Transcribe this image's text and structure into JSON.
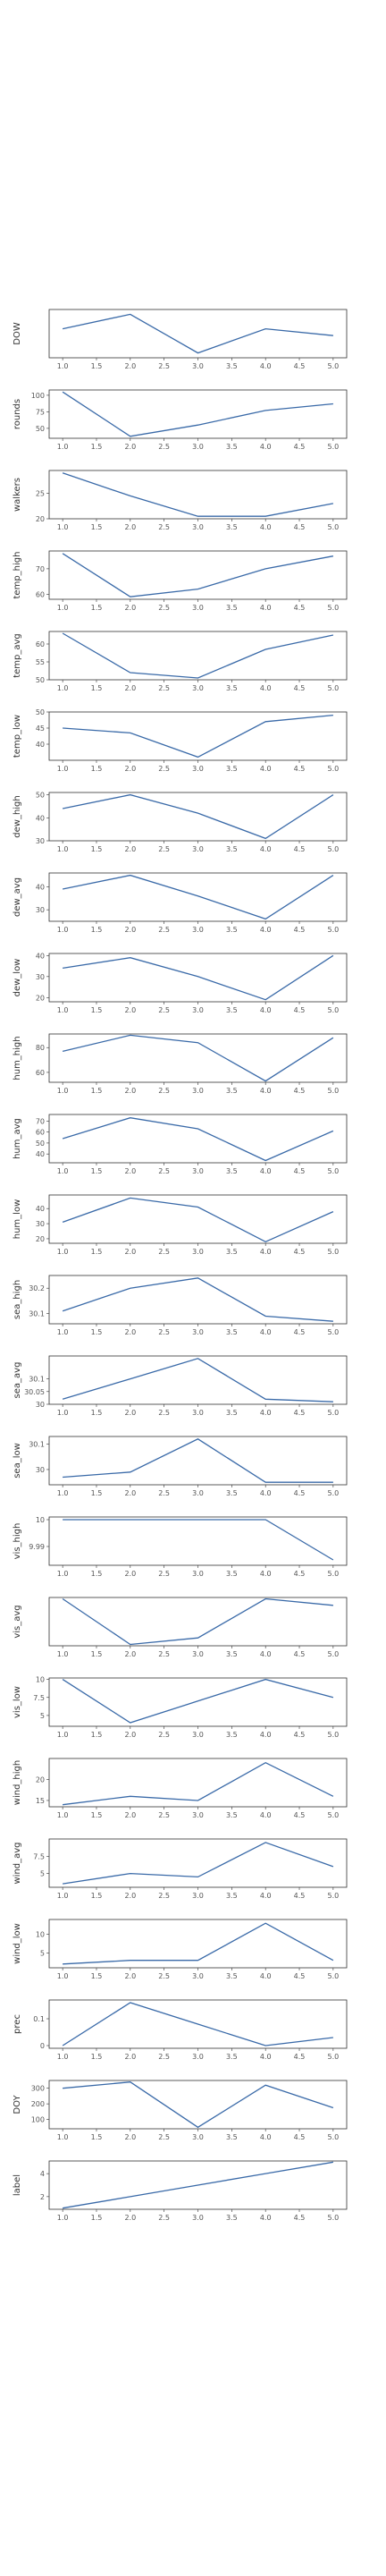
{
  "chart_data": {
    "type": "line",
    "line_color": "#3a6aa8",
    "frame_color": "#333333",
    "grid": false,
    "x": [
      1,
      2,
      3,
      4,
      5
    ],
    "xlim": [
      0.8,
      5.2
    ],
    "xticks": [
      "1.0",
      "1.5",
      "2.0",
      "2.5",
      "3.0",
      "3.5",
      "4.0",
      "4.5",
      "5.0"
    ],
    "panels": [
      {
        "ylabel": "DOW",
        "values": [
          3.0,
          4.5,
          0.5,
          3.0,
          2.3
        ],
        "ylim": [
          0,
          5
        ],
        "yticks": []
      },
      {
        "ylabel": "rounds",
        "values": [
          105,
          38,
          55,
          77,
          87
        ],
        "ylim": [
          35,
          108
        ],
        "yticks": [
          50,
          75,
          100
        ]
      },
      {
        "ylabel": "walkers",
        "values": [
          29,
          24.5,
          20.5,
          20.5,
          23
        ],
        "ylim": [
          20,
          29.5
        ],
        "yticks": [
          20,
          25
        ]
      },
      {
        "ylabel": "temp_high",
        "values": [
          76,
          59,
          62,
          70,
          75
        ],
        "ylim": [
          58,
          77
        ],
        "yticks": [
          60,
          70
        ]
      },
      {
        "ylabel": "temp_avg",
        "values": [
          63,
          52,
          50.5,
          58.5,
          62.5
        ],
        "ylim": [
          50,
          63.5
        ],
        "yticks": [
          50,
          55,
          60
        ]
      },
      {
        "ylabel": "temp_low",
        "values": [
          45,
          43.5,
          36,
          47,
          49
        ],
        "ylim": [
          35,
          50
        ],
        "yticks": [
          40,
          45,
          50
        ]
      },
      {
        "ylabel": "dew_high",
        "values": [
          44,
          50,
          42,
          31,
          50
        ],
        "ylim": [
          30,
          51
        ],
        "yticks": [
          30,
          40,
          50
        ]
      },
      {
        "ylabel": "dew_avg",
        "values": [
          39,
          45,
          36,
          26,
          45
        ],
        "ylim": [
          25,
          46
        ],
        "yticks": [
          30,
          40
        ]
      },
      {
        "ylabel": "dew_low",
        "values": [
          34,
          39,
          30,
          19,
          40
        ],
        "ylim": [
          18,
          41
        ],
        "yticks": [
          20,
          30,
          40
        ]
      },
      {
        "ylabel": "hum_high",
        "values": [
          77,
          90,
          84,
          53,
          88
        ],
        "ylim": [
          52,
          91
        ],
        "yticks": [
          60,
          80
        ]
      },
      {
        "ylabel": "hum_avg",
        "values": [
          54,
          73,
          63,
          34,
          61
        ],
        "ylim": [
          32,
          76
        ],
        "yticks": [
          40,
          50,
          60,
          70
        ]
      },
      {
        "ylabel": "hum_low",
        "values": [
          31,
          47,
          41,
          18,
          38
        ],
        "ylim": [
          17,
          49
        ],
        "yticks": [
          20,
          30,
          40
        ]
      },
      {
        "ylabel": "sea_high",
        "values": [
          30.11,
          30.2,
          30.24,
          30.09,
          30.07
        ],
        "ylim": [
          30.06,
          30.25
        ],
        "yticks": [
          30.1,
          30.2
        ]
      },
      {
        "ylabel": "sea_avg",
        "values": [
          30.02,
          30.1,
          30.18,
          30.02,
          30.01
        ],
        "ylim": [
          30.0,
          30.19
        ],
        "yticks": [
          30.0,
          30.05,
          30.1
        ]
      },
      {
        "ylabel": "sea_low",
        "values": [
          29.97,
          29.99,
          30.12,
          29.95,
          29.95
        ],
        "ylim": [
          29.94,
          30.13
        ],
        "yticks": [
          30.0,
          30.1
        ]
      },
      {
        "ylabel": "vis_high",
        "values": [
          10,
          10,
          10,
          10,
          9.985
        ],
        "ylim": [
          9.983,
          10.001
        ],
        "yticks": [
          9.99,
          10.0
        ]
      },
      {
        "ylabel": "vis_avg",
        "values": [
          10,
          9.3,
          9.4,
          10,
          9.9
        ],
        "ylim": [
          9.28,
          10.02
        ],
        "yticks": []
      },
      {
        "ylabel": "vis_low",
        "values": [
          10,
          4,
          7,
          10,
          7.5
        ],
        "ylim": [
          3.5,
          10.2
        ],
        "yticks": [
          5.0,
          7.5,
          10.0
        ]
      },
      {
        "ylabel": "wind_high",
        "values": [
          14,
          16,
          15,
          24,
          16
        ],
        "ylim": [
          13.5,
          25
        ],
        "yticks": [
          15,
          20
        ]
      },
      {
        "ylabel": "wind_avg",
        "values": [
          3.5,
          5,
          4.5,
          9.5,
          6
        ],
        "ylim": [
          3,
          10
        ],
        "yticks": [
          5.0,
          7.5
        ]
      },
      {
        "ylabel": "wind_low",
        "values": [
          2,
          3,
          3,
          13,
          3
        ],
        "ylim": [
          1,
          14
        ],
        "yticks": [
          5,
          10
        ]
      },
      {
        "ylabel": "prec",
        "values": [
          0.0,
          0.16,
          0.08,
          0.0,
          0.03
        ],
        "ylim": [
          -0.01,
          0.17
        ],
        "yticks": [
          0.0,
          0.1
        ]
      },
      {
        "ylabel": "DOY",
        "values": [
          300,
          340,
          50,
          320,
          175
        ],
        "ylim": [
          40,
          350
        ],
        "yticks": [
          100,
          200,
          300
        ]
      },
      {
        "ylabel": "label",
        "values": [
          1,
          2,
          3,
          4,
          5
        ],
        "ylim": [
          0.9,
          5.1
        ],
        "yticks": [
          2,
          4
        ]
      }
    ]
  }
}
